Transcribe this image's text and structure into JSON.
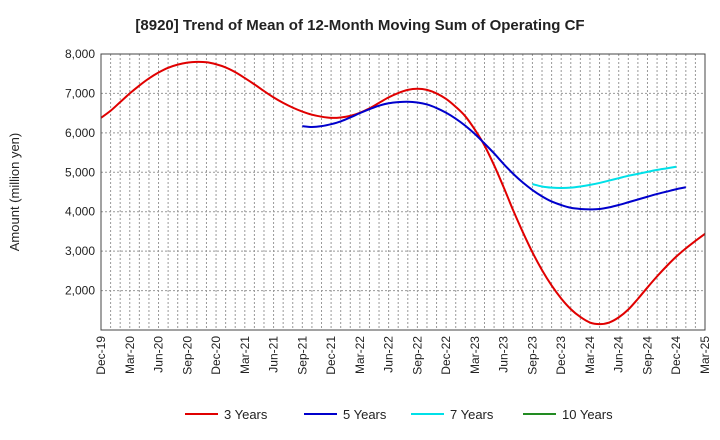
{
  "chart_data": {
    "type": "line",
    "title": "[8920]  Trend of Mean of 12-Month Moving Sum of Operating CF",
    "xlabel": "",
    "ylabel": "Amount (million yen)",
    "ylim": [
      1000,
      8000
    ],
    "yticks": [
      2000,
      3000,
      4000,
      5000,
      6000,
      7000,
      8000
    ],
    "ytick_labels": [
      "2,000",
      "3,000",
      "4,000",
      "5,000",
      "6,000",
      "7,000",
      "8,000"
    ],
    "xticks": [
      "Dec-19",
      "Mar-20",
      "Jun-20",
      "Sep-20",
      "Dec-20",
      "Mar-21",
      "Jun-21",
      "Sep-21",
      "Dec-21",
      "Mar-22",
      "Jun-22",
      "Sep-22",
      "Dec-22",
      "Mar-23",
      "Jun-23",
      "Sep-23",
      "Dec-23",
      "Mar-24",
      "Jun-24",
      "Sep-24",
      "Dec-24",
      "Mar-25"
    ],
    "grid": true,
    "legend_position": "bottom",
    "series": [
      {
        "name": "3 Years",
        "color": "#e00000",
        "start_month": 0,
        "values": [
          6380,
          6560,
          6780,
          7000,
          7200,
          7380,
          7530,
          7650,
          7730,
          7780,
          7800,
          7790,
          7740,
          7660,
          7540,
          7390,
          7230,
          7060,
          6900,
          6760,
          6640,
          6540,
          6460,
          6410,
          6380,
          6390,
          6430,
          6510,
          6620,
          6760,
          6900,
          7010,
          7090,
          7120,
          7090,
          7000,
          6860,
          6660,
          6420,
          6080,
          5680,
          5180,
          4620,
          4030,
          3480,
          2970,
          2520,
          2130,
          1800,
          1530,
          1330,
          1190,
          1150,
          1190,
          1320,
          1520,
          1790,
          2080,
          2360,
          2620,
          2860,
          3070,
          3260,
          3440
        ]
      },
      {
        "name": "5 Years",
        "color": "#0000cc",
        "start_month": 21,
        "values": [
          6170,
          6150,
          6170,
          6220,
          6290,
          6390,
          6500,
          6600,
          6690,
          6750,
          6780,
          6790,
          6770,
          6720,
          6630,
          6510,
          6360,
          6180,
          5970,
          5730,
          5480,
          5210,
          4960,
          4740,
          4550,
          4390,
          4260,
          4170,
          4100,
          4070,
          4060,
          4070,
          4110,
          4170,
          4240,
          4310,
          4380,
          4450,
          4510,
          4570,
          4620
        ]
      },
      {
        "name": "7 Years",
        "color": "#00e0e8",
        "start_month": 45,
        "values": [
          4700,
          4640,
          4610,
          4600,
          4610,
          4640,
          4680,
          4730,
          4790,
          4850,
          4910,
          4960,
          5010,
          5060,
          5100,
          5140
        ]
      },
      {
        "name": "10 Years",
        "color": "#228b22",
        "start_month": 0,
        "values": []
      }
    ]
  }
}
